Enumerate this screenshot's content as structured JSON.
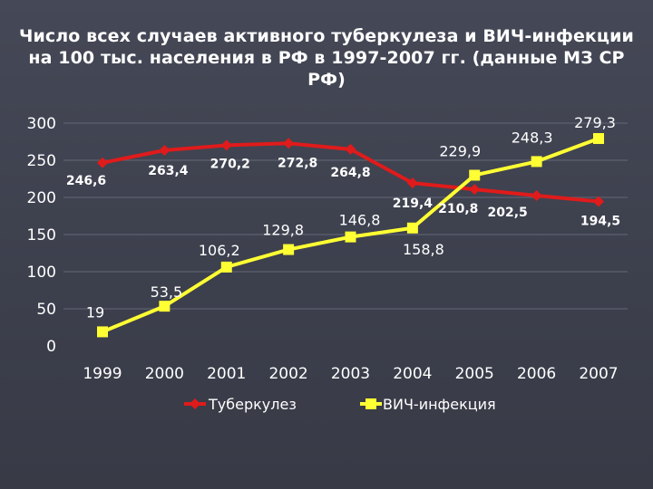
{
  "slide": {
    "title": "Число всех случаев активного туберкулеза и ВИЧ-инфекции на 100 тыс. населения в РФ в 1997-2007 гг. (данные МЗ СР РФ)"
  },
  "colors": {
    "tuberculosis": "#e01b1b",
    "hiv": "#ffff33",
    "grid": "#5d6070",
    "background": "#3f4250",
    "text": "#ffffff"
  },
  "chart_data": {
    "type": "line",
    "title": "Число всех случаев активного туберкулеза и ВИЧ-инфекции на 100 тыс. населения в РФ в 1997-2007 гг. (данные МЗ СР РФ)",
    "categories": [
      "1999",
      "2000",
      "2001",
      "2002",
      "2003",
      "2004",
      "2005",
      "2006",
      "2007"
    ],
    "ylim": [
      0,
      300
    ],
    "yticks": [
      0,
      50,
      100,
      150,
      200,
      250,
      300
    ],
    "grid": true,
    "legend_position": "bottom",
    "series": [
      {
        "name": "Туберкулез",
        "marker": "diamond",
        "values": [
          246.6,
          263.4,
          270.2,
          272.8,
          264.8,
          219.4,
          210.8,
          202.5,
          194.5
        ],
        "labels": [
          "246,6",
          "263,4",
          "270,2",
          "272,8",
          "264,8",
          "219,4",
          "210,8",
          "202,5",
          "194,5"
        ]
      },
      {
        "name": "ВИЧ-инфекция",
        "marker": "square",
        "values": [
          19,
          53.5,
          106.2,
          129.8,
          146.8,
          158.8,
          229.9,
          248.3,
          279.3
        ],
        "labels": [
          "19",
          "53,5",
          "106,2",
          "129,8",
          "146,8",
          "158,8",
          "229,9",
          "248,3",
          "279,3"
        ]
      }
    ]
  }
}
